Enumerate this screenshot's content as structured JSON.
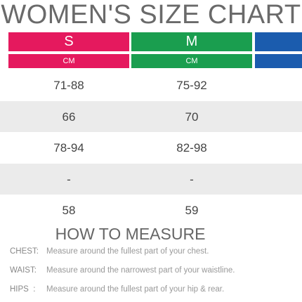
{
  "header": {
    "title": "WOMEN'S SIZE CHART"
  },
  "table": {
    "columns": [
      {
        "label": "S",
        "unit": "CM",
        "color": "#e5195e"
      },
      {
        "label": "M",
        "unit": "CM",
        "color": "#1a9e4f"
      }
    ],
    "rows": [
      [
        "71-88",
        "75-92"
      ],
      [
        "66",
        "70"
      ],
      [
        "78-94",
        "82-98"
      ],
      [
        "-",
        "-"
      ],
      [
        "58",
        "59"
      ]
    ]
  },
  "measure": {
    "title": "HOW TO MEASURE",
    "items": [
      {
        "label": "CHEST:",
        "text": "Measure around the fullest part of your chest."
      },
      {
        "label": "WAIST:",
        "text": "Measure around the narrowest part of your waistline."
      },
      {
        "label": "HIPS  :",
        "text": "Measure around the fullest part of your hip & rear."
      }
    ]
  }
}
